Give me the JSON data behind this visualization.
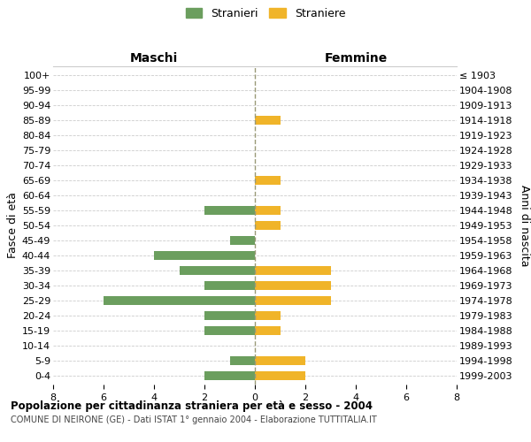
{
  "age_groups": [
    "100+",
    "95-99",
    "90-94",
    "85-89",
    "80-84",
    "75-79",
    "70-74",
    "65-69",
    "60-64",
    "55-59",
    "50-54",
    "45-49",
    "40-44",
    "35-39",
    "30-34",
    "25-29",
    "20-24",
    "15-19",
    "10-14",
    "5-9",
    "0-4"
  ],
  "birth_years": [
    "≤ 1903",
    "1904-1908",
    "1909-1913",
    "1914-1918",
    "1919-1923",
    "1924-1928",
    "1929-1933",
    "1934-1938",
    "1939-1943",
    "1944-1948",
    "1949-1953",
    "1954-1958",
    "1959-1963",
    "1964-1968",
    "1969-1973",
    "1974-1978",
    "1979-1983",
    "1984-1988",
    "1989-1993",
    "1994-1998",
    "1999-2003"
  ],
  "maschi": [
    0,
    0,
    0,
    0,
    0,
    0,
    0,
    0,
    0,
    2,
    0,
    1,
    4,
    3,
    2,
    6,
    2,
    2,
    0,
    1,
    2
  ],
  "femmine": [
    0,
    0,
    0,
    1,
    0,
    0,
    0,
    1,
    0,
    1,
    1,
    0,
    0,
    3,
    3,
    3,
    1,
    1,
    0,
    2,
    2
  ],
  "color_maschi": "#6b9e5e",
  "color_femmine": "#f0b429",
  "title_main": "Popolazione per cittadinanza straniera per età e sesso - 2004",
  "title_sub": "COMUNE DI NEIRONE (GE) - Dati ISTAT 1° gennaio 2004 - Elaborazione TUTTITALIA.IT",
  "xlabel_left": "Maschi",
  "xlabel_right": "Femmine",
  "ylabel_left": "Fasce di età",
  "ylabel_right": "Anni di nascita",
  "legend_maschi": "Stranieri",
  "legend_femmine": "Straniere",
  "xlim": 8,
  "background_color": "#ffffff",
  "grid_color": "#cccccc",
  "center_line_color": "#999977",
  "bar_height": 0.6
}
